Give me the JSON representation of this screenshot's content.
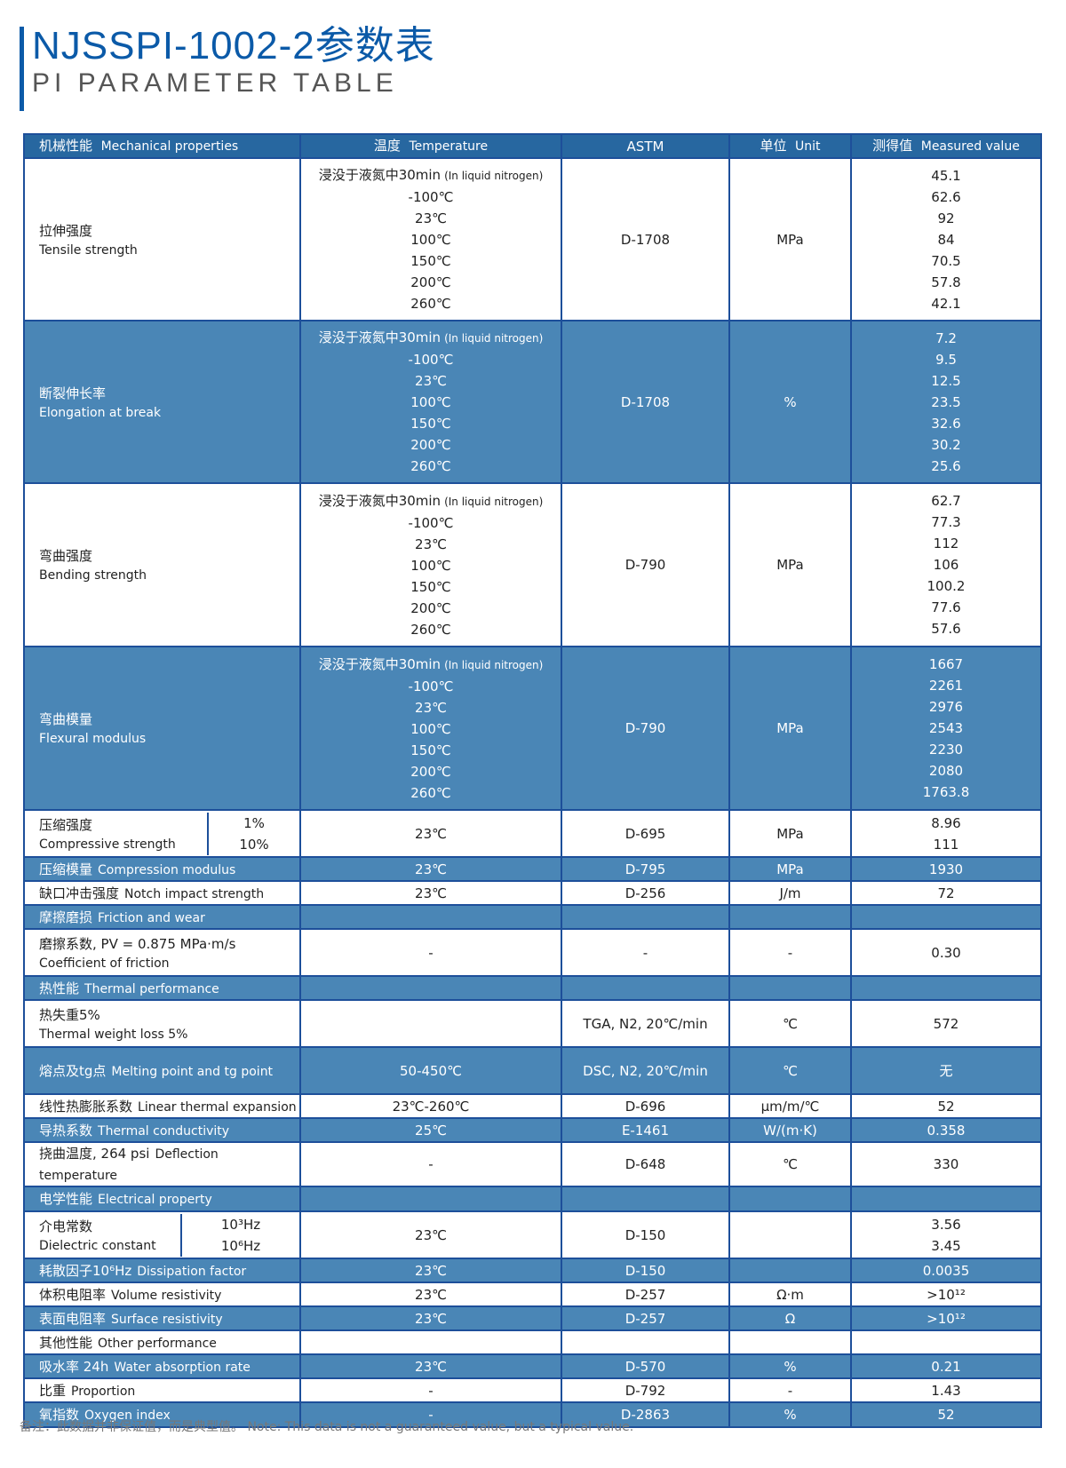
{
  "title": "NJSSPI-1002-2参数表",
  "subtitle": "PI PARAMETER TABLE",
  "colors": {
    "title": "#0b5aa8",
    "header": "#2767a0",
    "highlight_row": "#4a86b6",
    "border": "#1d4f9a"
  },
  "headers": [
    {
      "cn": "机械性能",
      "en": "Mechanical properties"
    },
    {
      "cn": "温度",
      "en": "Temperature"
    },
    {
      "cn": "",
      "en": "ASTM"
    },
    {
      "cn": "单位",
      "en": "Unit"
    },
    {
      "cn": "测得值",
      "en": "Measured value"
    }
  ],
  "temps7": [
    "浸没于液氮中30min",
    "-100℃",
    "23℃",
    "100℃",
    "150℃",
    "200℃",
    "260℃"
  ],
  "liquid_note": "(In liquid nitrogen)",
  "rows": [
    {
      "cn": "拉伸强度",
      "en": "Tensile strength",
      "temp": "temps7",
      "astm": "D-1708",
      "unit": "MPa",
      "values": [
        "45.1",
        "62.6",
        "92",
        "84",
        "70.5",
        "57.8",
        "42.1"
      ],
      "blue": false
    },
    {
      "cn": "断裂伸长率",
      "en": "Elongation at break",
      "temp": "temps7",
      "astm": "D-1708",
      "unit": "%",
      "values": [
        "7.2",
        "9.5",
        "12.5",
        "23.5",
        "32.6",
        "30.2",
        "25.6"
      ],
      "blue": true
    },
    {
      "cn": "弯曲强度",
      "en": "Bending strength",
      "temp": "temps7",
      "astm": "D-790",
      "unit": "MPa",
      "values": [
        "62.7",
        "77.3",
        "112",
        "106",
        "100.2",
        "77.6",
        "57.6"
      ],
      "blue": false
    },
    {
      "cn": "弯曲模量",
      "en": "Flexural modulus",
      "temp": "temps7",
      "astm": "D-790",
      "unit": "MPa",
      "values": [
        "1667",
        "2261",
        "2976",
        "2543",
        "2230",
        "2080",
        "1763.8"
      ],
      "blue": true
    },
    {
      "cn": "压缩强度",
      "en": "Compressive strength",
      "sub": [
        "1%",
        "10%"
      ],
      "temp": "23℃",
      "astm": "D-695",
      "unit": "MPa",
      "values": [
        "8.96",
        "111"
      ],
      "blue": false
    },
    {
      "cn": "压缩模量",
      "en": "Compression modulus",
      "inline": true,
      "temp": "23℃",
      "astm": "D-795",
      "unit": "MPa",
      "values": [
        "1930"
      ],
      "blue": true
    },
    {
      "cn": "缺口冲击强度",
      "en": "Notch impact strength",
      "inline": true,
      "temp": "23℃",
      "astm": "D-256",
      "unit": "J/m",
      "values": [
        "72"
      ],
      "blue": false
    },
    {
      "cn": "摩擦磨损",
      "en": "Friction and wear",
      "inline": true,
      "temp": "",
      "astm": "",
      "unit": "",
      "values": [
        ""
      ],
      "blue": true
    },
    {
      "cn": "磨擦系数, PV = 0.875 MPa·m/s",
      "en": "Coefficient of friction",
      "temp": "-",
      "astm": "-",
      "unit": "-",
      "values": [
        "0.30"
      ],
      "blue": false
    },
    {
      "cn": "热性能",
      "en": "Thermal performance",
      "inline": true,
      "temp": "",
      "astm": "",
      "unit": "",
      "values": [
        ""
      ],
      "blue": true
    },
    {
      "cn": "热失重5%",
      "en": "Thermal weight loss 5%",
      "temp": "",
      "astm": "TGA, N2, 20℃/min",
      "unit": "℃",
      "values": [
        "572"
      ],
      "blue": false
    },
    {
      "cn": "熔点及tg点",
      "en": "Melting point and tg point",
      "inline": true,
      "tall": true,
      "temp": "50-450℃",
      "astm": "DSC, N2, 20℃/min",
      "unit": "℃",
      "values": [
        "无"
      ],
      "blue": true
    },
    {
      "cn": "线性热膨胀系数",
      "en": "Linear thermal expansion",
      "inline": true,
      "small": true,
      "temp": "23℃-260℃",
      "astm": "D-696",
      "unit": "μm/m/℃",
      "values": [
        "52"
      ],
      "blue": false
    },
    {
      "cn": "导热系数",
      "en": "Thermal conductivity",
      "inline": true,
      "temp": "25℃",
      "astm": "E-1461",
      "unit": "W/(m·K)",
      "values": [
        "0.358"
      ],
      "blue": true
    },
    {
      "cn": "挠曲温度, 264 psi",
      "en": "Deflection temperature",
      "inline": true,
      "small": true,
      "temp": "-",
      "astm": "D-648",
      "unit": "℃",
      "values": [
        "330"
      ],
      "blue": false
    },
    {
      "cn": "电学性能",
      "en": "Electrical property",
      "inline": true,
      "temp": "",
      "astm": "",
      "unit": "",
      "values": [
        ""
      ],
      "blue": true
    },
    {
      "cn": "介电常数",
      "en": "Dielectric constant",
      "sub": [
        "10³Hz",
        "10⁶Hz"
      ],
      "temp": "23℃",
      "astm": "D-150",
      "unit": "",
      "values": [
        "3.56",
        "3.45"
      ],
      "blue": false
    },
    {
      "cn": "耗散因子10⁶Hz",
      "en": "Dissipation factor",
      "inline": true,
      "temp": "23℃",
      "astm": "D-150",
      "unit": "",
      "values": [
        "0.0035"
      ],
      "blue": true
    },
    {
      "cn": "体积电阻率",
      "en": "Volume resistivity",
      "inline": true,
      "temp": "23℃",
      "astm": "D-257",
      "unit": "Ω·m",
      "values": [
        ">10¹²"
      ],
      "blue": false
    },
    {
      "cn": "表面电阻率",
      "en": "Surface resistivity",
      "inline": true,
      "temp": "23℃",
      "astm": "D-257",
      "unit": "Ω",
      "values": [
        ">10¹²"
      ],
      "blue": true
    },
    {
      "cn": "其他性能",
      "en": "Other performance",
      "inline": true,
      "temp": "",
      "astm": "",
      "unit": "",
      "values": [
        ""
      ],
      "blue": false
    },
    {
      "cn": "吸水率 24h",
      "en": "Water absorption rate",
      "inline": true,
      "temp": "23℃",
      "astm": "D-570",
      "unit": "%",
      "values": [
        "0.21"
      ],
      "blue": true
    },
    {
      "cn": "比重",
      "en": "Proportion",
      "inline": true,
      "temp": "-",
      "astm": "D-792",
      "unit": "-",
      "values": [
        "1.43"
      ],
      "blue": false
    },
    {
      "cn": "氧指数",
      "en": "Oxygen index",
      "inline": true,
      "temp": "-",
      "astm": "D-2863",
      "unit": "%",
      "values": [
        "52"
      ],
      "blue": true
    }
  ],
  "note": "备注：此数据并非保证值，而是典型值。 Note: This data is not a guaranteed value, but a typical value."
}
